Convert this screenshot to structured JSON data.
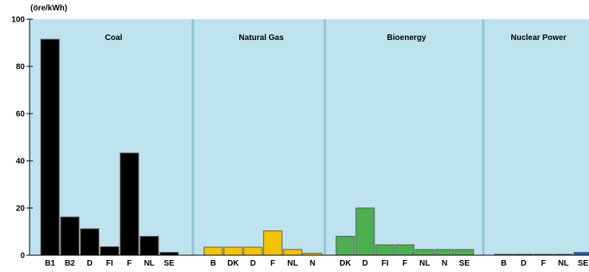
{
  "chart_data": {
    "type": "bar",
    "unit_label": "(öre/kWh)",
    "ylim": [
      0,
      100
    ],
    "yticks": [
      0,
      20,
      40,
      60,
      80,
      100
    ],
    "grid": false,
    "colors": {
      "plot_bg": "#bfe3ee",
      "divider": "#8fc4d6",
      "bar_border": "#5a5a5a"
    },
    "groups": [
      {
        "name": "Coal",
        "color": "#000000",
        "bars": [
          {
            "label": "B1",
            "value": 91.5
          },
          {
            "label": "B2",
            "value": 16.2
          },
          {
            "label": "D",
            "value": 11.2
          },
          {
            "label": "FI",
            "value": 3.6
          },
          {
            "label": "F",
            "value": 43.3
          },
          {
            "label": "NL",
            "value": 8.0
          },
          {
            "label": "SE",
            "value": 1.2
          }
        ]
      },
      {
        "name": "Natural Gas",
        "color": "#f5c400",
        "bars": [
          {
            "label": "B",
            "value": 3.4
          },
          {
            "label": "DK",
            "value": 3.4
          },
          {
            "label": "D",
            "value": 3.4
          },
          {
            "label": "F",
            "value": 10.3
          },
          {
            "label": "NL",
            "value": 2.4
          },
          {
            "label": "N",
            "value": 0.8
          }
        ]
      },
      {
        "name": "Bioenergy",
        "color": "#4caf50",
        "bars": [
          {
            "label": "DK",
            "value": 8.0
          },
          {
            "label": "D",
            "value": 20.0
          },
          {
            "label": "FI",
            "value": 4.4
          },
          {
            "label": "F",
            "value": 4.4
          },
          {
            "label": "NL",
            "value": 2.4
          },
          {
            "label": "N",
            "value": 2.4
          },
          {
            "label": "SE",
            "value": 2.4
          }
        ]
      },
      {
        "name": "Nuclear Power",
        "color": "#1f5fbf",
        "bars": [
          {
            "label": "B",
            "value": 0.4
          },
          {
            "label": "D",
            "value": 0.4
          },
          {
            "label": "F",
            "value": 0.4
          },
          {
            "label": "NL",
            "value": 0.4
          },
          {
            "label": "SE",
            "value": 1.2
          }
        ]
      }
    ]
  }
}
